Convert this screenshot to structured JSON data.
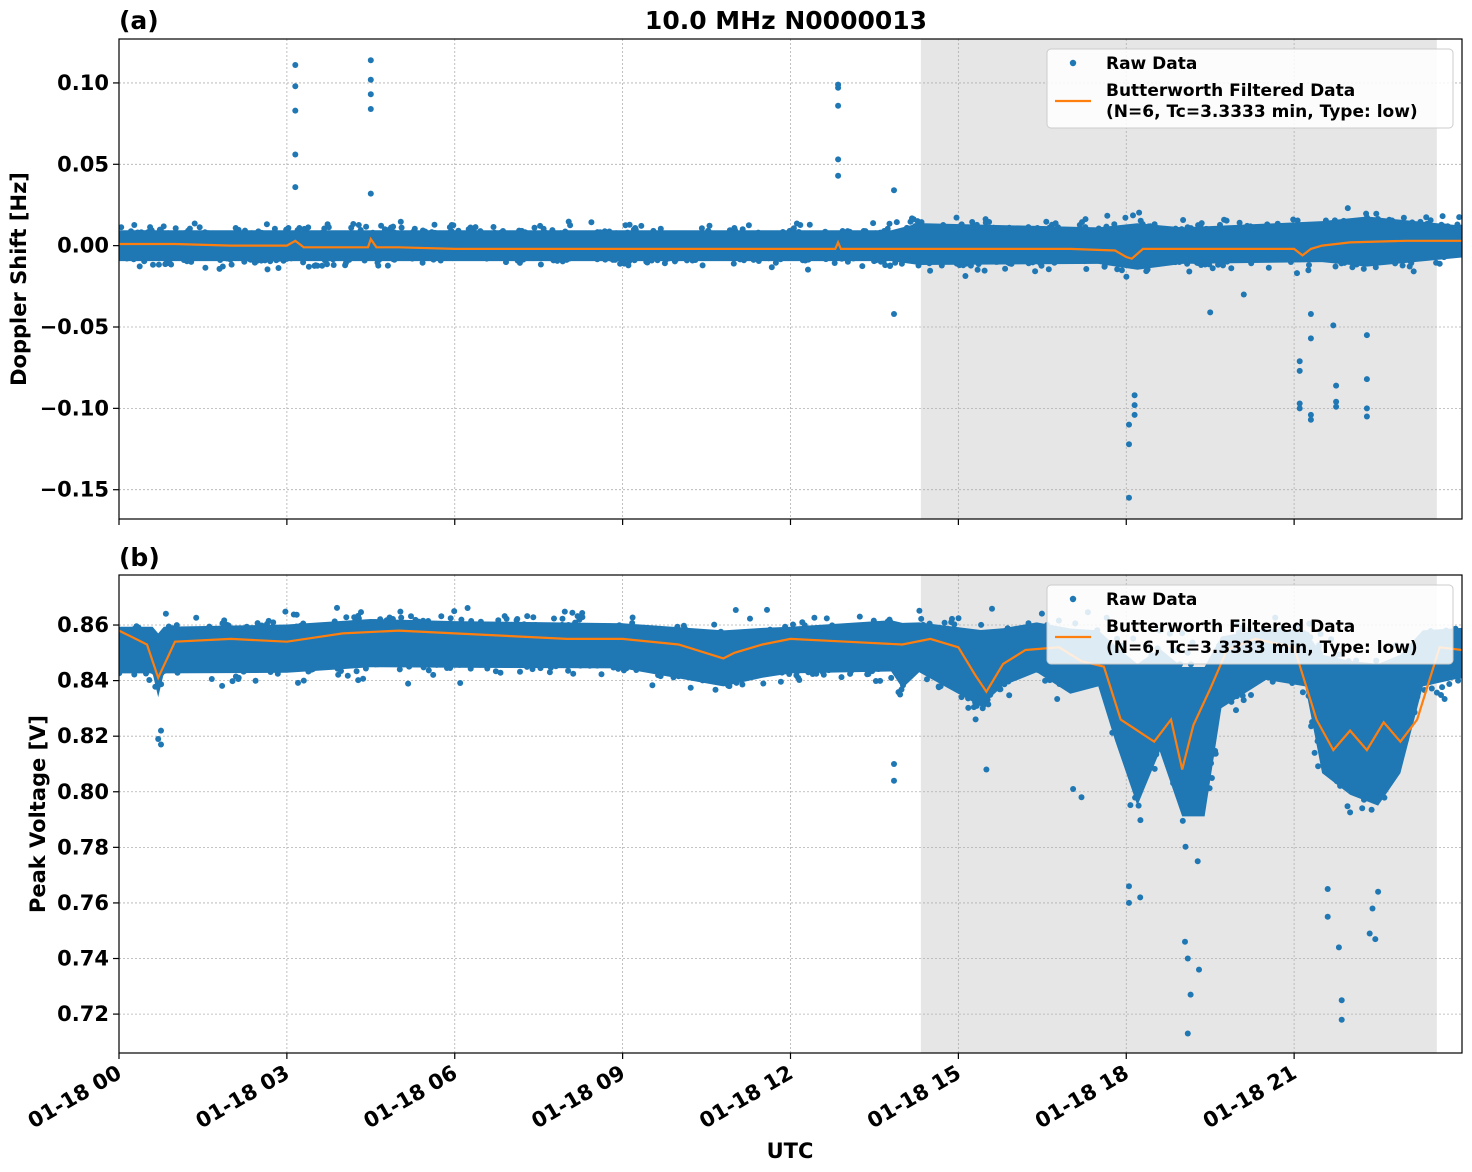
{
  "figure": {
    "title": "10.0 MHz N0000013",
    "xlabel": "UTC"
  },
  "colors": {
    "raw": "#1f77b4",
    "filtered": "#ff7f0e",
    "shade": "#e6e6e6",
    "grid": "#b0b0b0"
  },
  "legend": {
    "raw_label": "Raw Data",
    "filtered_label_line1": "Butterworth Filtered Data",
    "filtered_label_line2": "(N=6, Tc=3.3333 min, Type: low)",
    "placement": "top-right"
  },
  "chart_data": [
    {
      "panel_label": "(a)",
      "type": "scatter",
      "ylabel": "Doppler Shift [Hz]",
      "xlim": [
        "01-18 00:00",
        "01-19 00:00"
      ],
      "ylim": [
        -0.168,
        0.127
      ],
      "xticks": [
        "01-18 00",
        "01-18 03",
        "01-18 06",
        "01-18 09",
        "01-18 12",
        "01-18 15",
        "01-18 18",
        "01-18 21"
      ],
      "yticks": [
        -0.15,
        -0.1,
        -0.05,
        0.0,
        0.05,
        0.1
      ],
      "ytick_labels": [
        "−0.15",
        "−0.10",
        "−0.05",
        "0.00",
        "0.05",
        "0.10"
      ],
      "grid": true,
      "shaded_interval_hours": [
        14.33,
        23.55
      ],
      "series": [
        {
          "name": "Raw Data",
          "band": [
            [
              0,
              -0.017,
              0.017
            ],
            [
              13.8,
              -0.017,
              0.017
            ],
            [
              14.3,
              -0.022,
              0.024
            ],
            [
              17.5,
              -0.02,
              0.02
            ],
            [
              18.2,
              -0.026,
              0.025
            ],
            [
              19,
              -0.02,
              0.02
            ],
            [
              21.5,
              -0.02,
              0.025
            ],
            [
              22.3,
              -0.025,
              0.03
            ],
            [
              24,
              -0.015,
              0.02
            ]
          ],
          "outliers": [
            [
              3.15,
              0.111
            ],
            [
              3.15,
              0.098
            ],
            [
              3.15,
              0.083
            ],
            [
              3.15,
              0.056
            ],
            [
              3.15,
              0.036
            ],
            [
              4.5,
              0.114
            ],
            [
              4.5,
              0.102
            ],
            [
              4.5,
              0.093
            ],
            [
              4.5,
              0.084
            ],
            [
              4.5,
              0.032
            ],
            [
              12.85,
              0.099
            ],
            [
              12.85,
              0.097
            ],
            [
              12.85,
              0.086
            ],
            [
              12.85,
              0.053
            ],
            [
              12.85,
              0.043
            ],
            [
              13.85,
              0.034
            ],
            [
              13.85,
              -0.042
            ],
            [
              18.05,
              -0.155
            ],
            [
              18.05,
              -0.122
            ],
            [
              18.05,
              -0.11
            ],
            [
              18.15,
              -0.092
            ],
            [
              18.15,
              -0.098
            ],
            [
              18.15,
              -0.104
            ],
            [
              19.5,
              -0.041
            ],
            [
              20.1,
              -0.03
            ],
            [
              21.1,
              -0.071
            ],
            [
              21.1,
              -0.077
            ],
            [
              21.1,
              -0.097
            ],
            [
              21.1,
              -0.1
            ],
            [
              21.3,
              -0.042
            ],
            [
              21.3,
              -0.057
            ],
            [
              21.3,
              -0.104
            ],
            [
              21.3,
              -0.107
            ],
            [
              21.7,
              -0.049
            ],
            [
              21.75,
              -0.086
            ],
            [
              21.75,
              -0.096
            ],
            [
              21.75,
              -0.099
            ],
            [
              22.3,
              -0.055
            ],
            [
              22.3,
              -0.082
            ],
            [
              22.3,
              -0.1
            ],
            [
              22.3,
              -0.105
            ]
          ]
        },
        {
          "name": "Butterworth Filtered Data",
          "x_hours": [
            0,
            1,
            2,
            3.0,
            3.15,
            3.3,
            4,
            4.45,
            4.5,
            4.6,
            5,
            6,
            7,
            8,
            9,
            10,
            11,
            12,
            12.8,
            12.85,
            12.9,
            13,
            14,
            15,
            16,
            17,
            17.8,
            18.0,
            18.1,
            18.3,
            19,
            20,
            21.0,
            21.15,
            21.3,
            21.5,
            22,
            23,
            24
          ],
          "y": [
            0.001,
            0.001,
            0.0,
            0.0,
            0.003,
            -0.001,
            -0.001,
            -0.001,
            0.004,
            -0.001,
            -0.001,
            -0.002,
            -0.002,
            -0.002,
            -0.002,
            -0.002,
            -0.002,
            -0.002,
            -0.002,
            0.002,
            -0.002,
            -0.002,
            -0.002,
            -0.002,
            -0.002,
            -0.002,
            -0.003,
            -0.007,
            -0.008,
            -0.002,
            -0.002,
            -0.002,
            -0.002,
            -0.006,
            -0.002,
            0.0,
            0.002,
            0.003,
            0.003
          ]
        }
      ]
    },
    {
      "panel_label": "(b)",
      "type": "scatter",
      "ylabel": "Peak Voltage [V]",
      "xlim": [
        "01-18 00:00",
        "01-19 00:00"
      ],
      "ylim": [
        0.706,
        0.878
      ],
      "xticks": [
        "01-18 00",
        "01-18 03",
        "01-18 06",
        "01-18 09",
        "01-18 12",
        "01-18 15",
        "01-18 18",
        "01-18 21"
      ],
      "yticks": [
        0.72,
        0.74,
        0.76,
        0.78,
        0.8,
        0.82,
        0.84,
        0.86
      ],
      "ytick_labels": [
        "0.72",
        "0.74",
        "0.76",
        "0.78",
        "0.80",
        "0.82",
        "0.84",
        "0.86"
      ],
      "grid": true,
      "shaded_interval_hours": [
        14.33,
        23.55
      ],
      "series": [
        {
          "name": "Raw Data",
          "band": [
            [
              0,
              0.836,
              0.866
            ],
            [
              0.6,
              0.836,
              0.866
            ],
            [
              0.7,
              0.825,
              0.866
            ],
            [
              0.8,
              0.836,
              0.866
            ],
            [
              3,
              0.836,
              0.867
            ],
            [
              4.5,
              0.838,
              0.869
            ],
            [
              6,
              0.838,
              0.868
            ],
            [
              9,
              0.838,
              0.867
            ],
            [
              10.8,
              0.83,
              0.866
            ],
            [
              11.5,
              0.834,
              0.866
            ],
            [
              12,
              0.836,
              0.866
            ],
            [
              13.8,
              0.836,
              0.869
            ],
            [
              14,
              0.828,
              0.87
            ],
            [
              14.3,
              0.836,
              0.868
            ],
            [
              15.4,
              0.82,
              0.869
            ],
            [
              15.8,
              0.83,
              0.867
            ],
            [
              16.4,
              0.836,
              0.868
            ],
            [
              17.0,
              0.826,
              0.868
            ],
            [
              17.5,
              0.83,
              0.866
            ],
            [
              17.8,
              0.805,
              0.866
            ],
            [
              18.2,
              0.775,
              0.866
            ],
            [
              18.6,
              0.8,
              0.866
            ],
            [
              19.0,
              0.77,
              0.866
            ],
            [
              19.4,
              0.77,
              0.866
            ],
            [
              19.7,
              0.82,
              0.866
            ],
            [
              20.5,
              0.833,
              0.866
            ],
            [
              21.2,
              0.83,
              0.866
            ],
            [
              21.5,
              0.79,
              0.866
            ],
            [
              22.0,
              0.78,
              0.866
            ],
            [
              22.5,
              0.775,
              0.866
            ],
            [
              22.9,
              0.79,
              0.866
            ],
            [
              23.3,
              0.83,
              0.866
            ],
            [
              24,
              0.834,
              0.866
            ]
          ],
          "outliers": [
            [
              0.75,
              0.822
            ],
            [
              0.75,
              0.817
            ],
            [
              0.7,
              0.819
            ],
            [
              13.85,
              0.81
            ],
            [
              13.85,
              0.804
            ],
            [
              15.5,
              0.808
            ],
            [
              17.05,
              0.801
            ],
            [
              17.2,
              0.798
            ],
            [
              18.05,
              0.766
            ],
            [
              18.05,
              0.76
            ],
            [
              18.25,
              0.762
            ],
            [
              19.05,
              0.746
            ],
            [
              19.1,
              0.74
            ],
            [
              19.15,
              0.727
            ],
            [
              19.1,
              0.713
            ],
            [
              19.3,
              0.736
            ],
            [
              21.6,
              0.765
            ],
            [
              21.6,
              0.755
            ],
            [
              21.8,
              0.744
            ],
            [
              21.85,
              0.725
            ],
            [
              21.85,
              0.718
            ],
            [
              22.35,
              0.749
            ],
            [
              22.45,
              0.747
            ],
            [
              22.4,
              0.758
            ],
            [
              22.5,
              0.764
            ]
          ]
        },
        {
          "name": "Butterworth Filtered Data",
          "x_hours": [
            0,
            0.5,
            0.7,
            1,
            2,
            3,
            4,
            5,
            6,
            7,
            8,
            9,
            10,
            10.8,
            11,
            11.5,
            12,
            13,
            14,
            14.5,
            15,
            15.3,
            15.5,
            15.8,
            16.2,
            16.8,
            17.2,
            17.6,
            17.9,
            18.2,
            18.5,
            18.8,
            19.0,
            19.2,
            19.5,
            19.8,
            20.3,
            21.0,
            21.4,
            21.7,
            22.0,
            22.3,
            22.6,
            22.9,
            23.2,
            23.6,
            24
          ],
          "y": [
            0.858,
            0.853,
            0.841,
            0.854,
            0.855,
            0.854,
            0.857,
            0.858,
            0.857,
            0.856,
            0.855,
            0.855,
            0.853,
            0.848,
            0.85,
            0.853,
            0.855,
            0.854,
            0.853,
            0.855,
            0.852,
            0.842,
            0.836,
            0.846,
            0.851,
            0.852,
            0.847,
            0.845,
            0.826,
            0.822,
            0.818,
            0.826,
            0.808,
            0.824,
            0.837,
            0.851,
            0.855,
            0.852,
            0.826,
            0.815,
            0.822,
            0.815,
            0.825,
            0.818,
            0.826,
            0.852,
            0.851
          ]
        }
      ]
    }
  ]
}
